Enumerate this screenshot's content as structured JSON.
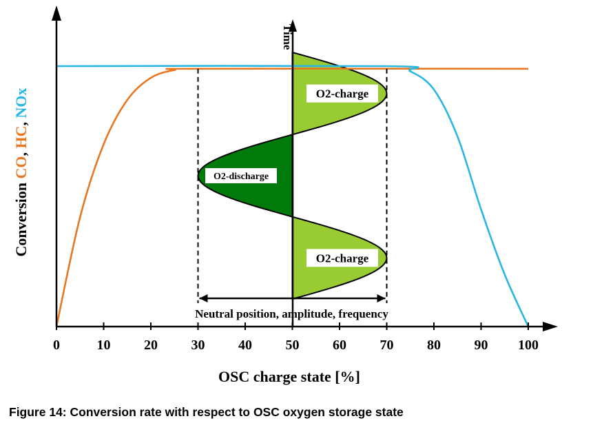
{
  "chart_data": {
    "type": "line",
    "title": "",
    "xlabel": "OSC charge state [%]",
    "ylabel_parts": [
      {
        "text": "Conversion ",
        "color": "#000000"
      },
      {
        "text": "CO",
        "color": "#e87722"
      },
      {
        "text": ", ",
        "color": "#000000"
      },
      {
        "text": "HC",
        "color": "#e87722"
      },
      {
        "text": ", ",
        "color": "#000000"
      },
      {
        "text": "NOx",
        "color": "#29b6e6"
      }
    ],
    "xlim": [
      0,
      100
    ],
    "ylim": [
      0,
      1
    ],
    "x_ticks": [
      0,
      10,
      20,
      30,
      40,
      50,
      60,
      70,
      80,
      90,
      100
    ],
    "x_tick_labels": [
      "0",
      "10",
      "20",
      "30",
      "40",
      "50",
      "60",
      "70",
      "80",
      "90",
      "100"
    ],
    "series": [
      {
        "name": "CO, HC",
        "color": "#e87722",
        "points": [
          [
            0,
            0.0
          ],
          [
            5,
            0.42
          ],
          [
            10,
            0.7
          ],
          [
            15,
            0.87
          ],
          [
            20,
            0.955
          ],
          [
            25,
            0.985
          ],
          [
            30,
            0.99
          ],
          [
            100,
            0.99
          ]
        ]
      },
      {
        "name": "NOx",
        "color": "#29b6e6",
        "points": [
          [
            0,
            1.0
          ],
          [
            70,
            1.0
          ],
          [
            75,
            0.98
          ],
          [
            80,
            0.91
          ],
          [
            85,
            0.73
          ],
          [
            90,
            0.45
          ],
          [
            95,
            0.2
          ],
          [
            100,
            0.0
          ]
        ]
      }
    ],
    "time_axis_label": "Time",
    "oscillation": {
      "neutral_position": 50,
      "amplitude": 20,
      "lobes": [
        {
          "label": "O2-charge",
          "direction": 1,
          "fill": "#99cc33"
        },
        {
          "label": "O2-discharge",
          "direction": -1,
          "fill": "#007a0a"
        },
        {
          "label": "O2-charge",
          "direction": 1,
          "fill": "#99cc33"
        }
      ]
    },
    "reference_lines_x": [
      30,
      70
    ],
    "range_annotation": "Neutral position, amplitude, frequency"
  },
  "caption": "Figure 14: Conversion rate with respect to OSC oxygen storage state"
}
